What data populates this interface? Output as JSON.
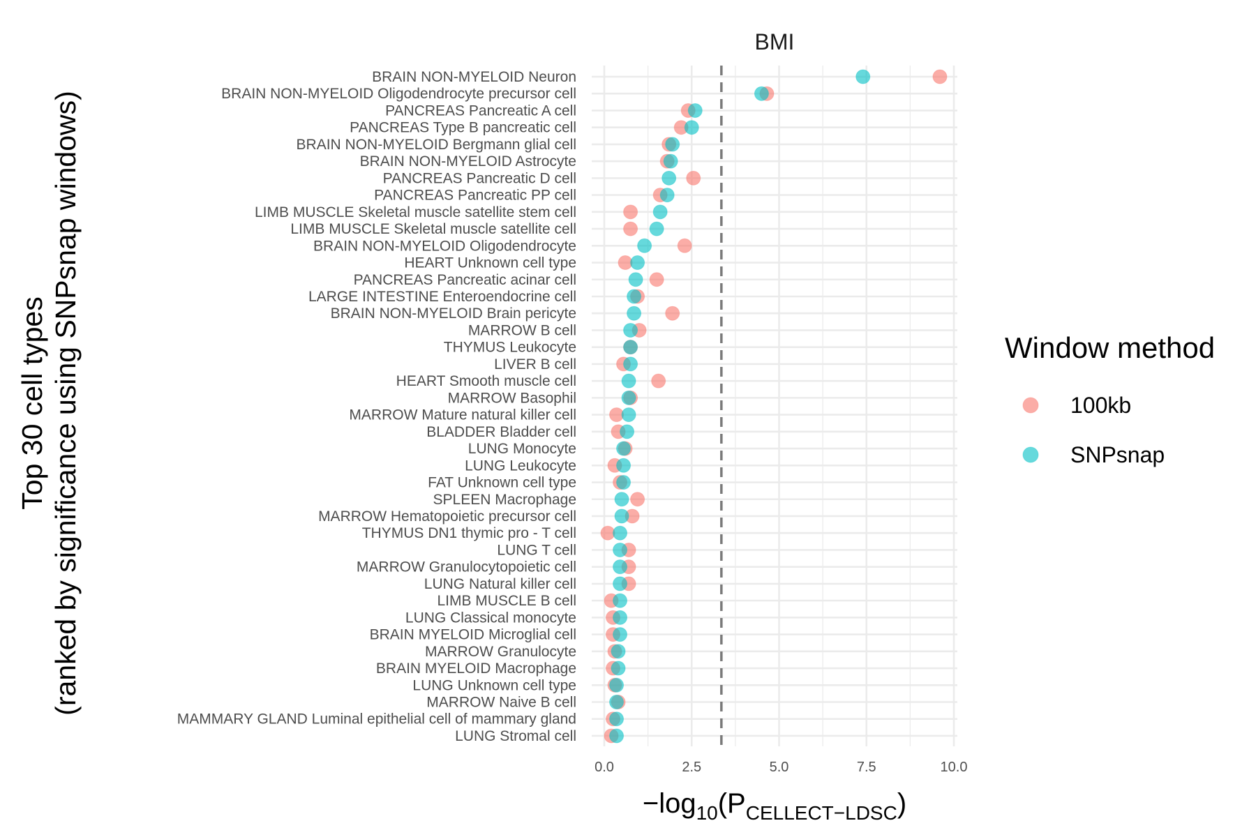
{
  "chart_data": {
    "type": "scatter",
    "title": "BMI",
    "ylabel_line1": "Top 30 cell types",
    "ylabel_line2": "(ranked by significance using SNPsnap windows)",
    "xlabel": {
      "prefix": "−log",
      "log_base": "10",
      "open_paren": "(P",
      "subscript": "CELLECT−LDSC",
      "close_paren": ")"
    },
    "xlim": [
      0,
      10
    ],
    "xticks": [
      0,
      2.5,
      5,
      7.5,
      10
    ],
    "xtick_labels": [
      "0.0",
      "2.5",
      "5.0",
      "7.5",
      "10.0"
    ],
    "threshold_line": 3.35,
    "categories": [
      "BRAIN NON-MYELOID Neuron",
      "BRAIN NON-MYELOID Oligodendrocyte precursor cell",
      "PANCREAS Pancreatic A cell",
      "PANCREAS Type B pancreatic cell",
      "BRAIN NON-MYELOID Bergmann glial cell",
      "BRAIN NON-MYELOID Astrocyte",
      "PANCREAS Pancreatic D cell",
      "PANCREAS Pancreatic PP cell",
      "LIMB MUSCLE Skeletal muscle satellite stem cell",
      "LIMB MUSCLE Skeletal muscle satellite cell",
      "BRAIN NON-MYELOID Oligodendrocyte",
      "HEART Unknown cell type",
      "PANCREAS Pancreatic acinar cell",
      "LARGE INTESTINE Enteroendocrine cell",
      "BRAIN NON-MYELOID Brain pericyte",
      "MARROW B cell",
      "THYMUS Leukocyte",
      "LIVER B cell",
      "HEART Smooth muscle cell",
      "MARROW Basophil",
      "MARROW Mature natural killer cell",
      "BLADDER Bladder cell",
      "LUNG Monocyte",
      "LUNG Leukocyte",
      "FAT Unknown cell type",
      "SPLEEN Macrophage",
      "MARROW Hematopoietic precursor cell",
      "THYMUS DN1 thymic pro - T cell",
      "LUNG T cell",
      "MARROW Granulocytopoietic cell",
      "LUNG Natural killer cell",
      "LIMB MUSCLE B cell",
      "LUNG Classical monocyte",
      "BRAIN MYELOID Microglial cell",
      "MARROW Granulocyte",
      "BRAIN MYELOID Macrophage",
      "LUNG Unknown cell type",
      "MARROW Naive B cell",
      "MAMMARY GLAND Luminal epithelial cell of mammary gland",
      "LUNG Stromal cell"
    ],
    "series": [
      {
        "name": "100kb",
        "color": "#F8766D",
        "values": [
          9.6,
          4.65,
          2.4,
          2.2,
          1.85,
          1.8,
          2.55,
          1.6,
          0.75,
          0.75,
          2.3,
          0.6,
          1.5,
          0.95,
          1.95,
          1.0,
          0.75,
          0.55,
          1.55,
          0.75,
          0.35,
          0.4,
          0.6,
          0.3,
          0.45,
          0.95,
          0.8,
          0.1,
          0.7,
          0.7,
          0.7,
          0.2,
          0.25,
          0.25,
          0.3,
          0.25,
          0.3,
          0.4,
          0.25,
          0.2
        ]
      },
      {
        "name": "SNPsnap",
        "color": "#00BFC4",
        "values": [
          7.4,
          4.5,
          2.6,
          2.5,
          1.95,
          1.9,
          1.85,
          1.8,
          1.6,
          1.5,
          1.15,
          0.95,
          0.9,
          0.85,
          0.85,
          0.75,
          0.75,
          0.75,
          0.7,
          0.7,
          0.7,
          0.65,
          0.55,
          0.55,
          0.55,
          0.5,
          0.5,
          0.45,
          0.45,
          0.45,
          0.45,
          0.45,
          0.45,
          0.45,
          0.4,
          0.4,
          0.35,
          0.35,
          0.35,
          0.35
        ]
      }
    ],
    "legend": {
      "title": "Window method",
      "position": "right"
    }
  }
}
